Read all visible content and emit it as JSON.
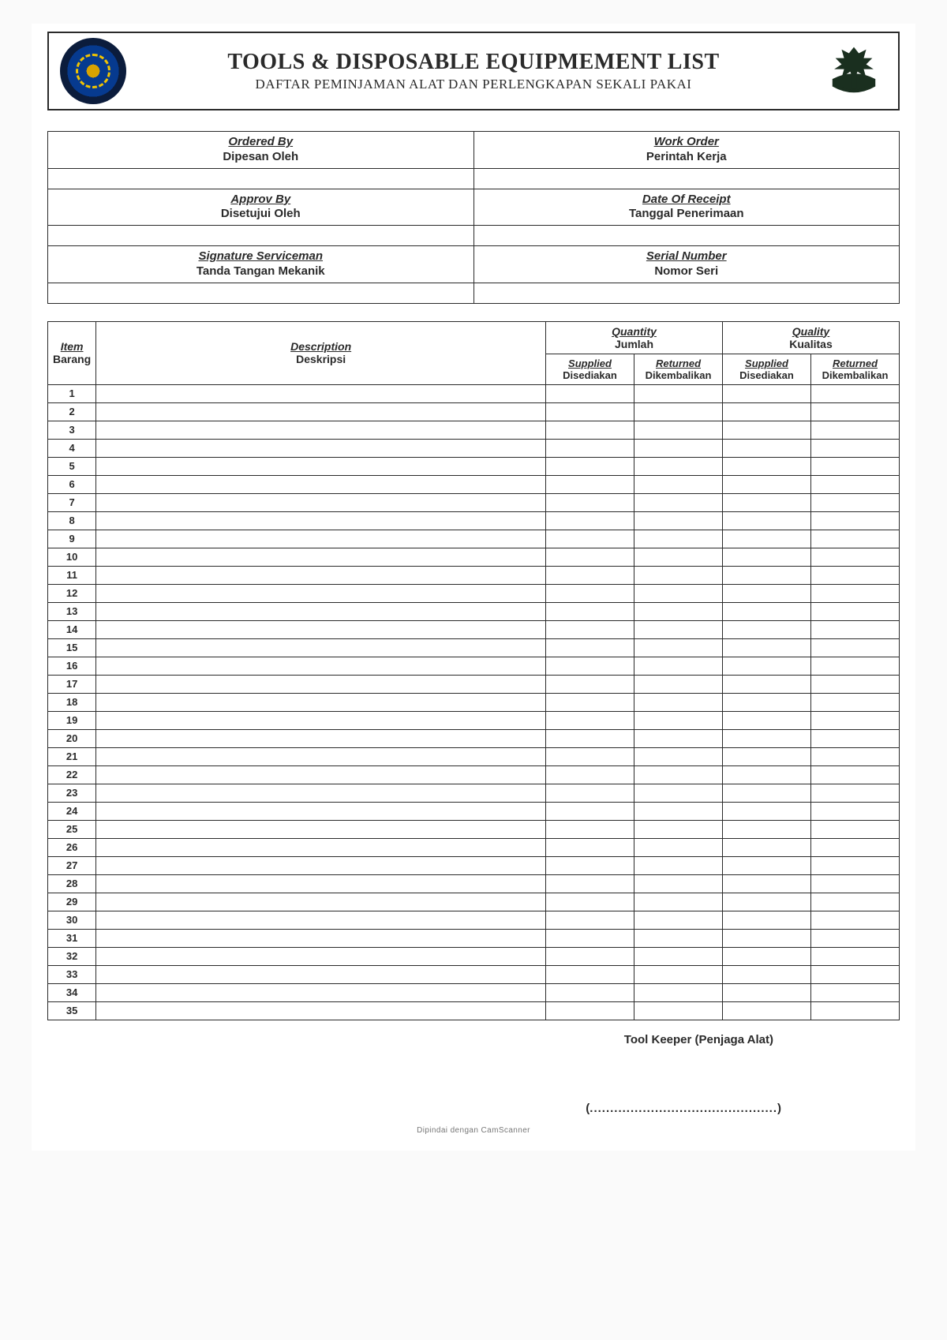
{
  "header": {
    "title": "TOOLS & DISPOSABLE EQUIPMEMENT LIST",
    "subtitle": "DAFTAR PEMINJAMAN ALAT DAN PERLENGKAPAN SEKALI PAKAI"
  },
  "info": {
    "rows": [
      {
        "left_en": "Ordered By",
        "left_id": "Dipesan Oleh",
        "right_en": "Work Order",
        "right_id": "Perintah Kerja"
      },
      {
        "left_en": "Approv By",
        "left_id": "Disetujui Oleh",
        "right_en": "Date Of Receipt",
        "right_id": "Tanggal Penerimaan"
      },
      {
        "left_en": "Signature Serviceman",
        "left_id": "Tanda Tangan Mekanik",
        "right_en": "Serial Number",
        "right_id": "Nomor Seri"
      }
    ]
  },
  "table": {
    "headers": {
      "item_en": "Item",
      "item_id": "Barang",
      "desc_en": "Description",
      "desc_id": "Deskripsi",
      "qty_en": "Quantity",
      "qty_id": "Jumlah",
      "qual_en": "Quality",
      "qual_id": "Kualitas",
      "supplied_en": "Supplied",
      "supplied_id": "Disediakan",
      "returned_en": "Returned",
      "returned_id": "Dikembalikan"
    },
    "row_count": 35
  },
  "footer": {
    "keeper": "Tool Keeper (Penjaga Alat)",
    "scan_note": "Dipindai dengan CamScanner"
  },
  "colors": {
    "border": "#2a2a2a",
    "background": "#ffffff",
    "logo_left_outer": "#0b1c3c",
    "logo_left_mid": "#063a8f",
    "logo_left_inner": "#d9a300",
    "logo_right": "#1a2f1f"
  }
}
